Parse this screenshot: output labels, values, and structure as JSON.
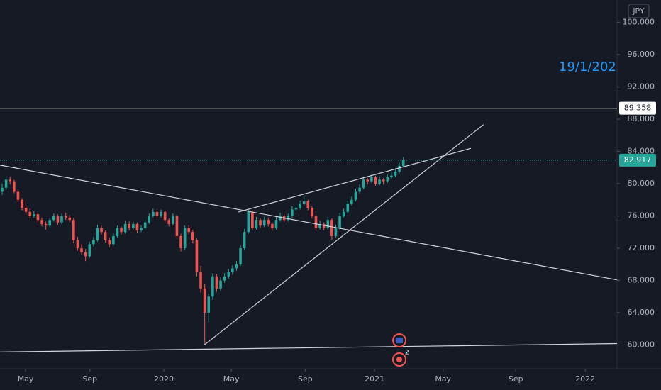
{
  "chart_data": {
    "type": "candlestick",
    "currency": "JPY",
    "annotation": "19/1/202",
    "event_badge": "2",
    "up_color": "#26a69a",
    "down_color": "#ef5350",
    "candles": [
      [
        79.0,
        80.0,
        78.6,
        79.5
      ],
      [
        79.5,
        80.8,
        79.2,
        80.5
      ],
      [
        80.5,
        80.9,
        79.9,
        80.3
      ],
      [
        80.3,
        80.5,
        78.8,
        79.0
      ],
      [
        79.0,
        79.3,
        77.7,
        78.0
      ],
      [
        78.0,
        78.2,
        76.7,
        77.0
      ],
      [
        77.0,
        77.3,
        76.1,
        76.5
      ],
      [
        76.5,
        76.9,
        75.7,
        76.0
      ],
      [
        76.0,
        76.6,
        75.8,
        76.2
      ],
      [
        76.2,
        76.4,
        75.2,
        75.5
      ],
      [
        75.5,
        75.8,
        74.7,
        75.0
      ],
      [
        75.0,
        75.3,
        74.3,
        74.8
      ],
      [
        74.8,
        75.8,
        74.6,
        75.5
      ],
      [
        75.5,
        76.3,
        75.3,
        76.0
      ],
      [
        76.0,
        76.2,
        74.9,
        75.2
      ],
      [
        75.2,
        76.3,
        75.0,
        76.0
      ],
      [
        76.0,
        76.4,
        75.5,
        75.8
      ],
      [
        75.8,
        76.1,
        75.2,
        75.5
      ],
      [
        75.5,
        75.7,
        72.6,
        73.0
      ],
      [
        73.0,
        73.4,
        71.7,
        72.0
      ],
      [
        72.0,
        72.5,
        71.2,
        71.5
      ],
      [
        71.5,
        71.9,
        70.4,
        71.0
      ],
      [
        71.0,
        72.8,
        70.8,
        72.5
      ],
      [
        72.5,
        73.4,
        72.2,
        73.0
      ],
      [
        73.0,
        74.9,
        72.8,
        74.5
      ],
      [
        74.5,
        74.8,
        73.7,
        74.0
      ],
      [
        74.0,
        74.2,
        72.7,
        73.0
      ],
      [
        73.0,
        73.3,
        72.1,
        72.5
      ],
      [
        72.5,
        73.9,
        72.3,
        73.5
      ],
      [
        73.5,
        74.8,
        73.3,
        74.5
      ],
      [
        74.5,
        74.7,
        73.7,
        74.0
      ],
      [
        74.0,
        75.4,
        73.8,
        75.0
      ],
      [
        75.0,
        75.3,
        74.2,
        74.5
      ],
      [
        74.5,
        75.3,
        74.3,
        75.0
      ],
      [
        75.0,
        75.2,
        73.9,
        74.2
      ],
      [
        74.2,
        74.8,
        74.0,
        74.5
      ],
      [
        74.5,
        75.5,
        74.3,
        75.2
      ],
      [
        75.2,
        76.3,
        75.0,
        76.0
      ],
      [
        76.0,
        76.9,
        75.8,
        76.5
      ],
      [
        76.5,
        76.8,
        75.7,
        76.0
      ],
      [
        76.0,
        76.8,
        75.8,
        76.5
      ],
      [
        76.5,
        76.7,
        75.2,
        75.5
      ],
      [
        75.5,
        75.7,
        74.7,
        75.0
      ],
      [
        75.0,
        76.3,
        74.8,
        76.0
      ],
      [
        76.0,
        76.1,
        73.2,
        73.5
      ],
      [
        73.5,
        73.8,
        71.6,
        72.0
      ],
      [
        72.0,
        74.8,
        71.8,
        74.5
      ],
      [
        74.5,
        74.9,
        73.7,
        74.0
      ],
      [
        74.0,
        74.3,
        72.6,
        73.0
      ],
      [
        73.0,
        73.2,
        68.5,
        69.0
      ],
      [
        69.0,
        69.8,
        66.5,
        67.0
      ],
      [
        67.0,
        67.6,
        60.0,
        64.0
      ],
      [
        64.0,
        66.4,
        62.8,
        66.0
      ],
      [
        66.0,
        68.9,
        65.6,
        68.5
      ],
      [
        68.5,
        68.8,
        66.6,
        67.0
      ],
      [
        67.0,
        68.4,
        66.7,
        68.0
      ],
      [
        68.0,
        68.9,
        67.7,
        68.5
      ],
      [
        68.5,
        69.4,
        68.2,
        69.0
      ],
      [
        69.0,
        69.9,
        68.7,
        69.5
      ],
      [
        69.5,
        70.4,
        69.2,
        70.0
      ],
      [
        70.0,
        72.4,
        69.8,
        72.0
      ],
      [
        72.0,
        74.4,
        71.8,
        74.0
      ],
      [
        74.0,
        76.8,
        73.8,
        76.5
      ],
      [
        76.5,
        76.7,
        74.2,
        74.5
      ],
      [
        74.5,
        75.9,
        74.3,
        75.5
      ],
      [
        75.5,
        75.7,
        74.5,
        74.8
      ],
      [
        74.8,
        75.9,
        74.6,
        75.5
      ],
      [
        75.5,
        75.8,
        74.7,
        75.0
      ],
      [
        75.0,
        75.2,
        74.2,
        74.5
      ],
      [
        74.5,
        75.9,
        74.3,
        75.5
      ],
      [
        75.5,
        76.4,
        75.3,
        76.0
      ],
      [
        76.0,
        76.2,
        75.2,
        75.5
      ],
      [
        75.5,
        76.3,
        75.3,
        76.0
      ],
      [
        76.0,
        77.2,
        75.8,
        76.8
      ],
      [
        76.8,
        77.4,
        76.6,
        77.0
      ],
      [
        77.0,
        77.9,
        76.8,
        77.5
      ],
      [
        77.5,
        78.4,
        77.3,
        77.8
      ],
      [
        77.8,
        78.0,
        76.7,
        77.0
      ],
      [
        77.0,
        77.2,
        75.7,
        76.0
      ],
      [
        76.0,
        76.2,
        74.2,
        74.5
      ],
      [
        74.5,
        75.4,
        74.3,
        75.0
      ],
      [
        75.0,
        75.2,
        74.2,
        74.5
      ],
      [
        74.5,
        75.9,
        74.3,
        75.5
      ],
      [
        75.5,
        75.7,
        73.0,
        73.5
      ],
      [
        73.5,
        74.9,
        73.3,
        74.5
      ],
      [
        74.5,
        76.4,
        74.3,
        76.0
      ],
      [
        76.0,
        76.9,
        75.8,
        76.5
      ],
      [
        76.5,
        77.9,
        76.3,
        77.5
      ],
      [
        77.5,
        78.4,
        77.3,
        78.0
      ],
      [
        78.0,
        79.4,
        77.8,
        79.0
      ],
      [
        79.0,
        79.9,
        78.8,
        79.5
      ],
      [
        79.5,
        80.9,
        79.3,
        80.5
      ],
      [
        80.5,
        80.7,
        79.9,
        80.3
      ],
      [
        80.3,
        81.2,
        80.1,
        80.8
      ],
      [
        80.8,
        81.0,
        79.7,
        80.0
      ],
      [
        80.0,
        80.9,
        79.8,
        80.5
      ],
      [
        80.5,
        80.7,
        79.9,
        80.3
      ],
      [
        80.3,
        81.2,
        80.1,
        80.8
      ],
      [
        80.8,
        81.4,
        80.6,
        81.0
      ],
      [
        81.0,
        81.9,
        80.8,
        81.5
      ],
      [
        81.5,
        82.6,
        81.3,
        82.2
      ],
      [
        82.2,
        83.3,
        82.0,
        82.917
      ]
    ],
    "xlim": [
      -0.54,
      154.8
    ],
    "xticks": [
      {
        "value": 5.9,
        "label": "May"
      },
      {
        "value": 22.1,
        "label": "Sep"
      },
      {
        "value": 40.7,
        "label": "2020"
      },
      {
        "value": 57.7,
        "label": "May"
      },
      {
        "value": 76.3,
        "label": "Sep"
      },
      {
        "value": 93.75,
        "label": "2021"
      },
      {
        "value": 111,
        "label": "May"
      },
      {
        "value": 129.3,
        "label": "Sep"
      },
      {
        "value": 146.8,
        "label": "2022"
      }
    ],
    "ylim": [
      57.05,
      102.78
    ],
    "yticks": [
      {
        "value": 60,
        "label": "60.000"
      },
      {
        "value": 64,
        "label": "64.000"
      },
      {
        "value": 68,
        "label": "68.000"
      },
      {
        "value": 72,
        "label": "72.000"
      },
      {
        "value": 76,
        "label": "76.000"
      },
      {
        "value": 80,
        "label": "80.000"
      },
      {
        "value": 84,
        "label": "84.000"
      },
      {
        "value": 88,
        "label": "88.000"
      },
      {
        "value": 92,
        "label": "92.000"
      },
      {
        "value": 96,
        "label": "96.000"
      },
      {
        "value": 100,
        "label": "100.000"
      }
    ],
    "trend_lines": [
      {
        "points": [
          [
            -0.54,
            82.3
          ],
          [
            154.8,
            68.07
          ]
        ]
      },
      {
        "points": [
          [
            59.5,
            76.49
          ],
          [
            118.0,
            84.38
          ]
        ]
      },
      {
        "points": [
          [
            50.9,
            60.0
          ],
          [
            121.2,
            87.33
          ]
        ]
      },
      {
        "points": [
          [
            -0.54,
            59.13
          ],
          [
            154.8,
            60.17
          ]
        ]
      }
    ],
    "price_lines": [
      {
        "value": 89.358,
        "label": "89.358",
        "color": "#ffffff",
        "style": "solid"
      },
      {
        "value": 82.917,
        "label": "82.917",
        "color": "#26a69a",
        "style": "dotted"
      }
    ]
  }
}
